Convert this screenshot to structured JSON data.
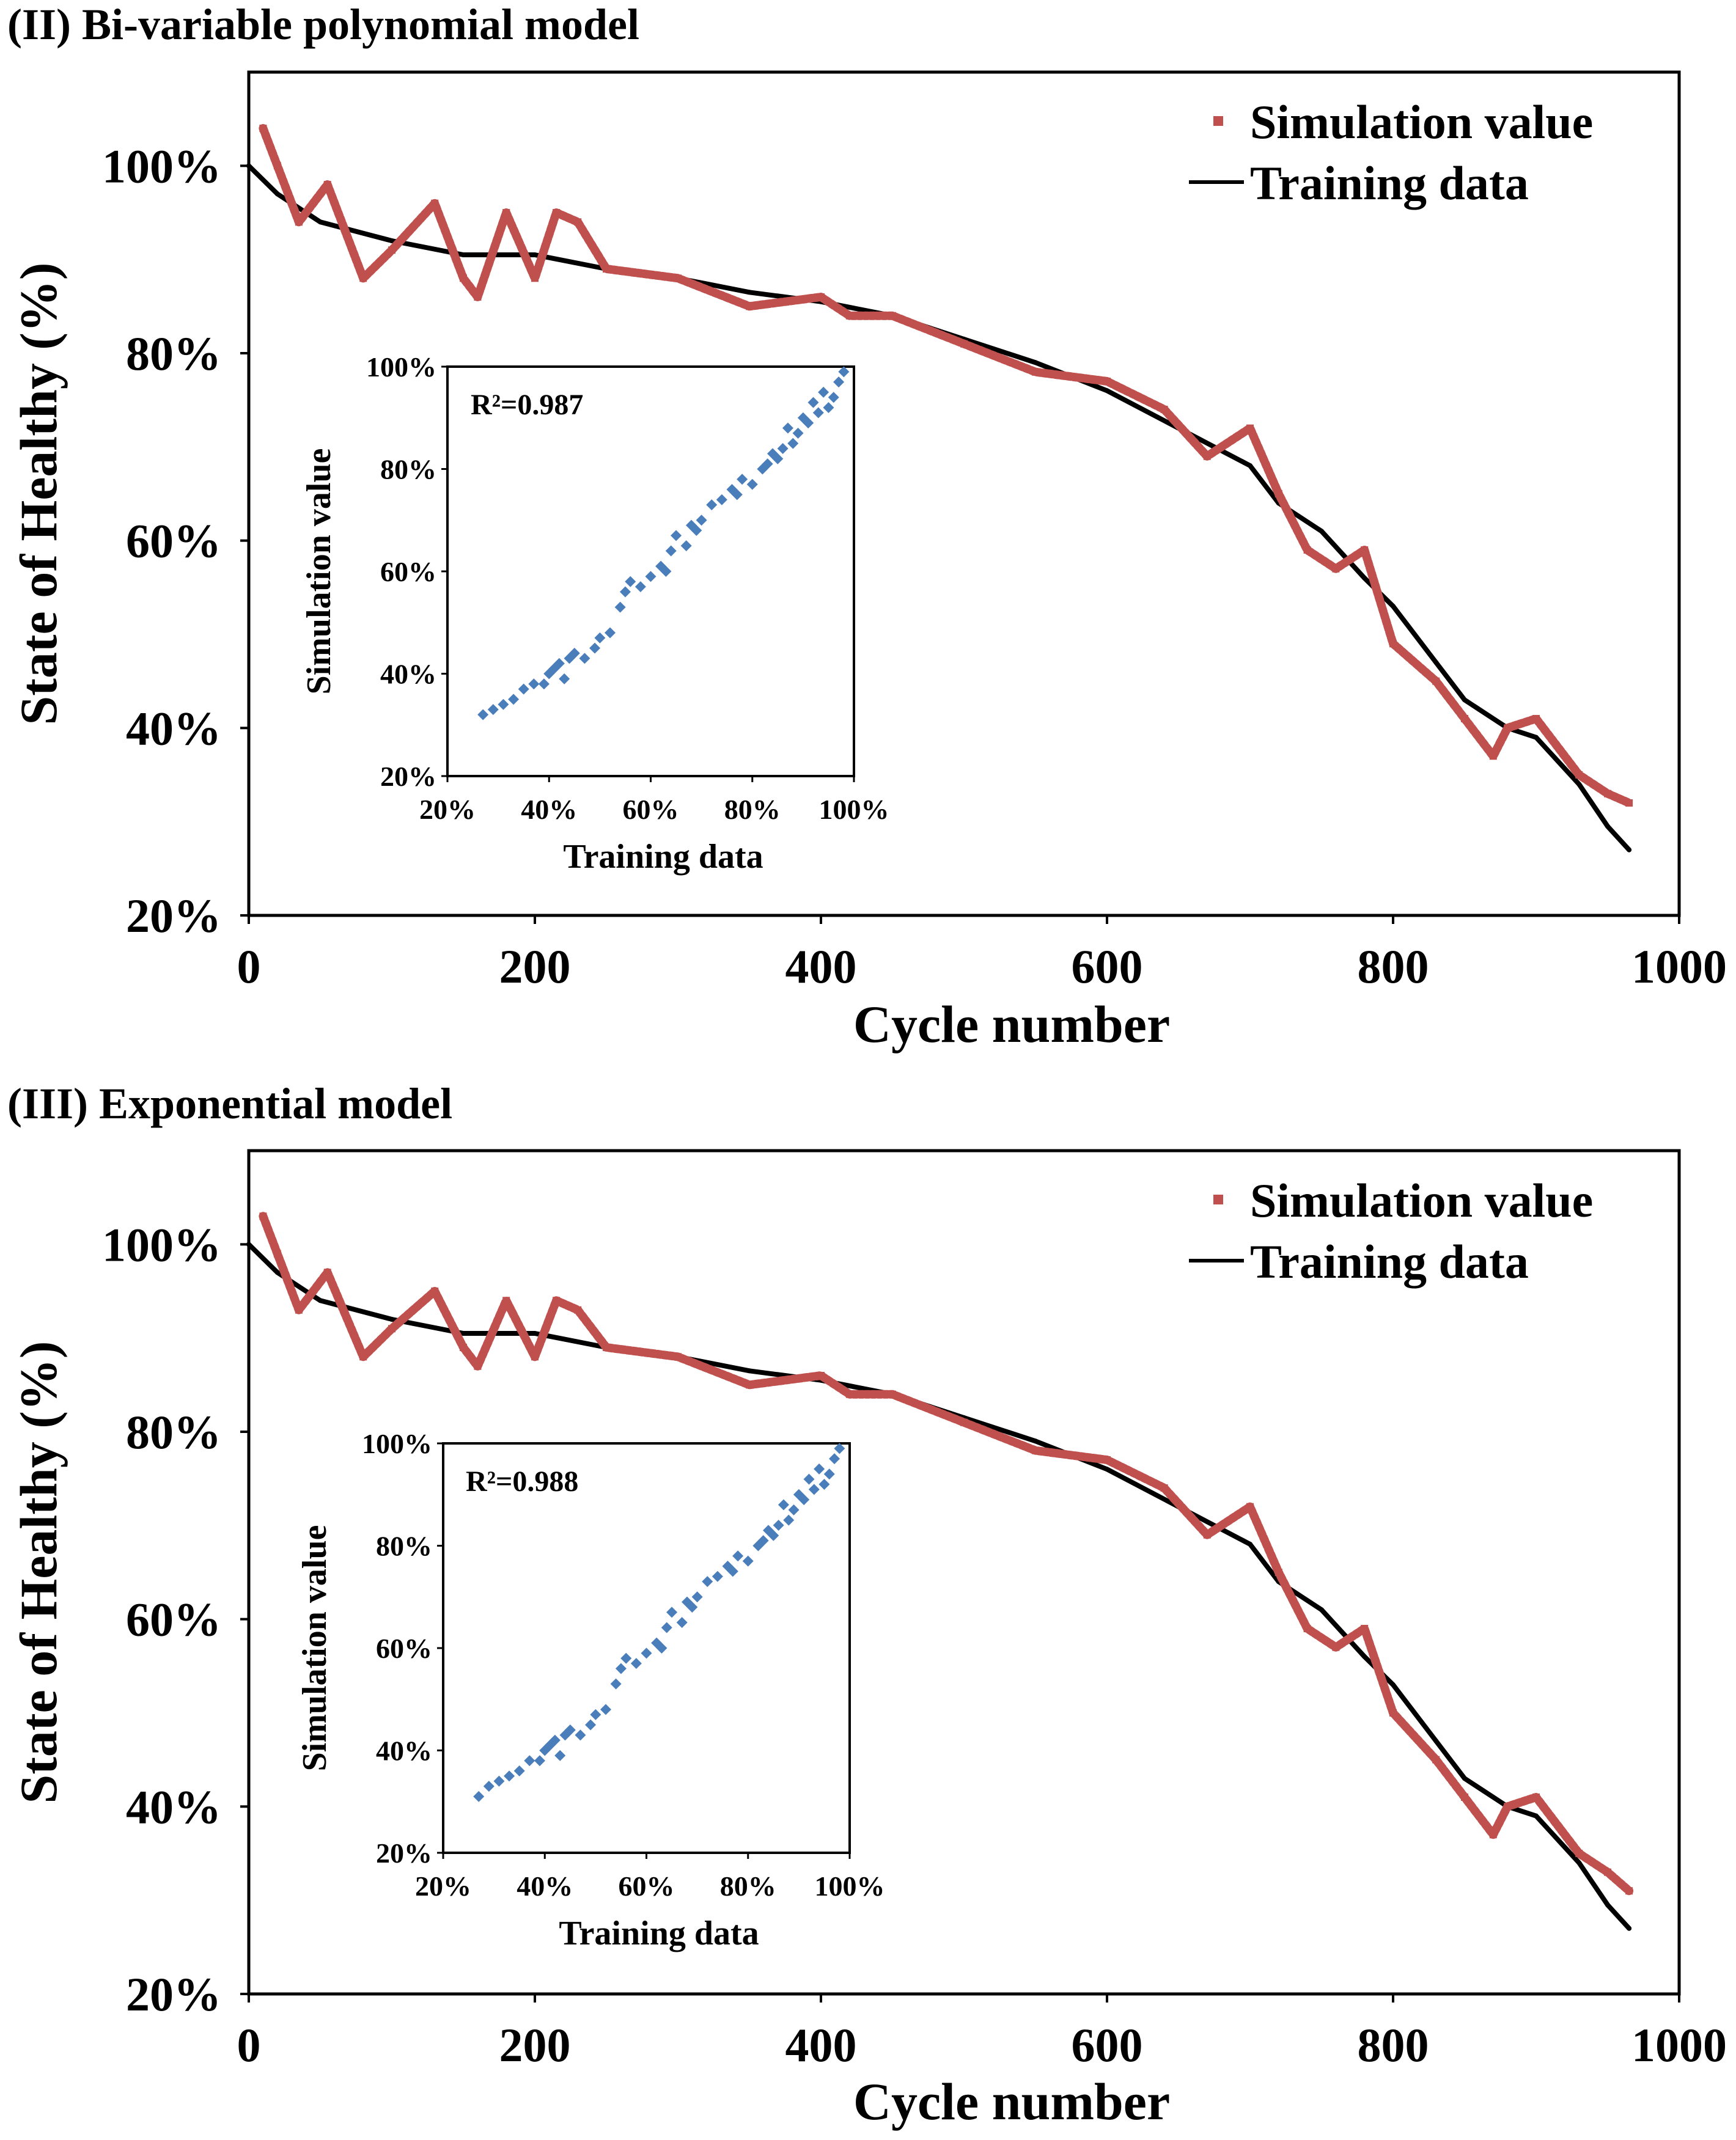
{
  "colors": {
    "simulation": "#c0504d",
    "training": "#000000",
    "scatter": "#4a7ebb",
    "axis": "#000000"
  },
  "chart_data": [
    {
      "type": "line",
      "title": "(II) Bi-variable polynomial model",
      "xlabel": "Cycle number",
      "ylabel": "State of Healthy (%)",
      "xlim": [
        0,
        1000
      ],
      "ylim": [
        20,
        110
      ],
      "xticks": [
        "0",
        "200",
        "400",
        "600",
        "800",
        "1000"
      ],
      "xtick_values": [
        0,
        200,
        400,
        600,
        800,
        1000
      ],
      "yticks": [
        "20%",
        "40%",
        "60%",
        "80%",
        "100%"
      ],
      "ytick_values": [
        20,
        40,
        60,
        80,
        100
      ],
      "legend": [
        "Simulation value",
        "Training data"
      ],
      "series": [
        {
          "name": "Training data",
          "x": [
            0,
            20,
            50,
            100,
            150,
            200,
            250,
            300,
            350,
            400,
            450,
            500,
            550,
            600,
            650,
            700,
            720,
            750,
            780,
            800,
            830,
            850,
            880,
            900,
            930,
            950,
            965
          ],
          "y": [
            100,
            97,
            94,
            92,
            90.5,
            90.5,
            89,
            88,
            86.5,
            85.5,
            84,
            81.5,
            79,
            76,
            72,
            68,
            64,
            61,
            56,
            53,
            47,
            43,
            40,
            39,
            34,
            29.5,
            27
          ]
        },
        {
          "name": "Simulation value",
          "x": [
            10,
            20,
            35,
            55,
            80,
            100,
            130,
            150,
            160,
            180,
            200,
            215,
            230,
            250,
            300,
            350,
            400,
            420,
            450,
            500,
            550,
            600,
            640,
            670,
            700,
            720,
            740,
            760,
            780,
            800,
            830,
            850,
            870,
            880,
            900,
            930,
            950,
            965
          ],
          "y": [
            104,
            100,
            94,
            98,
            88,
            91,
            96,
            88,
            86,
            95,
            88,
            95,
            94,
            89,
            88,
            85,
            86,
            84,
            84,
            81,
            78,
            77,
            74,
            69,
            72,
            65,
            59,
            57,
            59,
            49,
            45,
            41,
            37,
            40,
            41,
            35,
            33,
            32
          ]
        }
      ],
      "inset": {
        "type": "scatter",
        "r2_label": "R²=0.987",
        "xlabel": "Training data",
        "ylabel": "Simulation value",
        "xlim": [
          20,
          100
        ],
        "ylim": [
          20,
          100
        ],
        "xticks": [
          "20%",
          "40%",
          "60%",
          "80%",
          "100%"
        ],
        "xtick_values": [
          20,
          40,
          60,
          80,
          100
        ],
        "yticks": [
          "20%",
          "40%",
          "60%",
          "80%",
          "100%"
        ],
        "ytick_values": [
          20,
          40,
          60,
          80,
          100
        ],
        "points": {
          "x": [
            27,
            29,
            31,
            33,
            35,
            37,
            39,
            40,
            41,
            42,
            43,
            44,
            45,
            47,
            49,
            50,
            52,
            54,
            55,
            56,
            58,
            60,
            62,
            63,
            64,
            65,
            67,
            68,
            69,
            70,
            72,
            74,
            76,
            77,
            78,
            80,
            82,
            83,
            84,
            85,
            86,
            87,
            88,
            89,
            90,
            91,
            92,
            93,
            94,
            95,
            96,
            97,
            98
          ],
          "y": [
            32,
            33,
            34,
            35,
            37,
            38,
            38,
            40,
            41,
            42,
            39,
            43,
            44,
            43,
            45,
            47,
            48,
            53,
            56,
            58,
            57,
            59,
            61,
            60,
            64,
            67,
            65,
            69,
            68,
            70,
            73,
            74,
            76,
            75,
            78,
            77,
            80,
            81,
            83,
            82,
            84,
            88,
            85,
            87,
            90,
            89,
            93,
            91,
            95,
            92,
            94,
            97,
            99
          ]
        }
      }
    },
    {
      "type": "line",
      "title": "(III) Exponential model",
      "xlabel": "Cycle number",
      "ylabel": "State of Healthy (%)",
      "xlim": [
        0,
        1000
      ],
      "ylim": [
        20,
        110
      ],
      "xticks": [
        "0",
        "200",
        "400",
        "600",
        "800",
        "1000"
      ],
      "xtick_values": [
        0,
        200,
        400,
        600,
        800,
        1000
      ],
      "yticks": [
        "20%",
        "40%",
        "60%",
        "80%",
        "100%"
      ],
      "ytick_values": [
        20,
        40,
        60,
        80,
        100
      ],
      "legend": [
        "Simulation value",
        "Training data"
      ],
      "series": [
        {
          "name": "Training data",
          "x": [
            0,
            20,
            50,
            100,
            150,
            200,
            250,
            300,
            350,
            400,
            450,
            500,
            550,
            600,
            650,
            700,
            720,
            750,
            780,
            800,
            830,
            850,
            880,
            900,
            930,
            950,
            965
          ],
          "y": [
            100,
            97,
            94,
            92,
            90.5,
            90.5,
            89,
            88,
            86.5,
            85.5,
            84,
            81.5,
            79,
            76,
            72,
            68,
            64,
            61,
            56,
            53,
            47,
            43,
            40,
            39,
            34,
            29.5,
            27
          ]
        },
        {
          "name": "Simulation value",
          "x": [
            10,
            20,
            35,
            55,
            80,
            100,
            130,
            150,
            160,
            180,
            200,
            215,
            230,
            250,
            300,
            350,
            400,
            420,
            450,
            500,
            550,
            600,
            640,
            670,
            700,
            720,
            740,
            760,
            780,
            800,
            830,
            850,
            870,
            880,
            900,
            930,
            950,
            965
          ],
          "y": [
            103,
            99,
            93,
            97,
            88,
            91,
            95,
            89,
            87,
            94,
            88,
            94,
            93,
            89,
            88,
            85,
            86,
            84,
            84,
            81,
            78,
            77,
            74,
            69,
            72,
            65,
            59,
            57,
            59,
            50,
            45,
            41,
            37,
            40,
            41,
            35,
            33,
            31
          ]
        }
      ],
      "inset": {
        "type": "scatter",
        "r2_label": "R²=0.988",
        "xlabel": "Training data",
        "ylabel": "Simulation value",
        "xlim": [
          20,
          100
        ],
        "ylim": [
          20,
          100
        ],
        "xticks": [
          "20%",
          "40%",
          "60%",
          "80%",
          "100%"
        ],
        "xtick_values": [
          20,
          40,
          60,
          80,
          100
        ],
        "yticks": [
          "20%",
          "40%",
          "60%",
          "80%",
          "100%"
        ],
        "ytick_values": [
          20,
          40,
          60,
          80,
          100
        ],
        "points": {
          "x": [
            27,
            29,
            31,
            33,
            35,
            37,
            39,
            40,
            41,
            42,
            43,
            44,
            45,
            47,
            49,
            50,
            52,
            54,
            55,
            56,
            58,
            60,
            62,
            63,
            64,
            65,
            67,
            68,
            69,
            70,
            72,
            74,
            76,
            77,
            78,
            80,
            82,
            83,
            84,
            85,
            86,
            87,
            88,
            89,
            90,
            91,
            92,
            93,
            94,
            95,
            96,
            97,
            98
          ],
          "y": [
            31,
            33,
            34,
            35,
            36,
            38,
            38,
            40,
            41,
            42,
            39,
            43,
            44,
            43,
            45,
            47,
            48,
            53,
            56,
            58,
            57,
            59,
            61,
            60,
            64,
            67,
            65,
            69,
            68,
            70,
            73,
            74,
            76,
            75,
            78,
            77,
            80,
            81,
            83,
            82,
            84,
            88,
            85,
            87,
            90,
            89,
            93,
            91,
            95,
            92,
            94,
            97,
            99
          ]
        }
      }
    }
  ]
}
